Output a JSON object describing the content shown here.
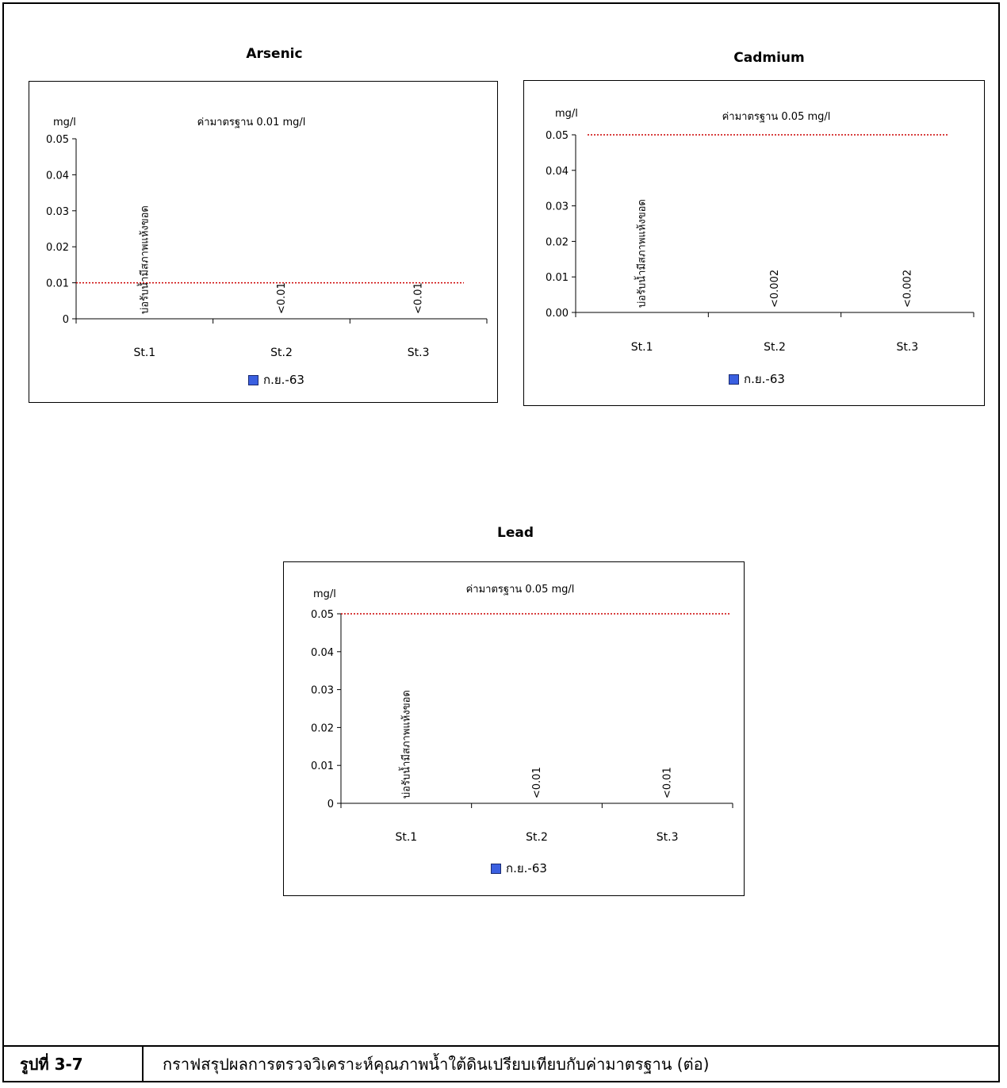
{
  "chart_data": [
    {
      "type": "bar",
      "title": "Arsenic",
      "ylabel": "mg/l",
      "standard_label": "ค่ามาตรฐาน 0.01 mg/l",
      "standard_value": 0.01,
      "categories": [
        "St.1",
        "St.2",
        "St.3"
      ],
      "series": [
        {
          "name": "ก.ย.-63",
          "values": [
            null,
            0,
            0
          ]
        }
      ],
      "data_labels": [
        "บ่อรับน้ำมีสภาพแห้งขอด",
        "<0.01",
        "<0.01"
      ],
      "y_ticks": [
        "0",
        "0.01",
        "0.02",
        "0.03",
        "0.04",
        "0.05"
      ],
      "ylim": [
        0,
        0.05
      ],
      "grid": false,
      "legend": "bottom",
      "colors": {
        "series": "#3a5fe0",
        "standard_line": "#cc0000"
      }
    },
    {
      "type": "bar",
      "title": "Cadmium",
      "ylabel": "mg/l",
      "standard_label": "ค่ามาตรฐาน 0.05 mg/l",
      "standard_value": 0.05,
      "categories": [
        "St.1",
        "St.2",
        "St.3"
      ],
      "series": [
        {
          "name": "ก.ย.-63",
          "values": [
            null,
            0,
            0
          ]
        }
      ],
      "data_labels": [
        "บ่อรับน้ำมีสภาพแห้งขอด",
        "<0.002",
        "<0.002"
      ],
      "y_ticks": [
        "0.00",
        "0.01",
        "0.02",
        "0.03",
        "0.04",
        "0.05"
      ],
      "ylim": [
        0,
        0.05
      ],
      "grid": false,
      "legend": "bottom",
      "colors": {
        "series": "#3a5fe0",
        "standard_line": "#cc0000"
      }
    },
    {
      "type": "bar",
      "title": "Lead",
      "ylabel": "mg/l",
      "standard_label": "ค่ามาตรฐาน 0.05 mg/l",
      "standard_value": 0.05,
      "categories": [
        "St.1",
        "St.2",
        "St.3"
      ],
      "series": [
        {
          "name": "ก.ย.-63",
          "values": [
            null,
            0,
            0
          ]
        }
      ],
      "data_labels": [
        "บ่อรับน้ำมีสภาพแห้งขอด",
        "<0.01",
        "<0.01"
      ],
      "y_ticks": [
        "0",
        "0.01",
        "0.02",
        "0.03",
        "0.04",
        "0.05"
      ],
      "ylim": [
        0,
        0.05
      ],
      "grid": false,
      "legend": "bottom",
      "colors": {
        "series": "#3a5fe0",
        "standard_line": "#cc0000"
      }
    }
  ],
  "caption": {
    "label": "รูปที่  3-7",
    "text": "กราฟสรุปผลการตรวจวิเคราะห์คุณภาพน้ำใต้ดินเปรียบเทียบกับค่ามาตรฐาน (ต่อ)"
  }
}
